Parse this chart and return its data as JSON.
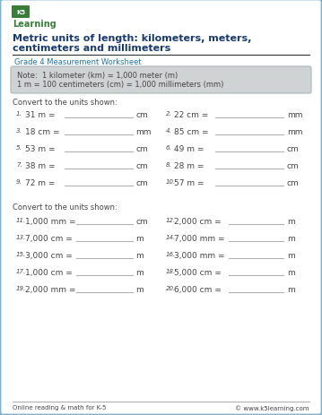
{
  "title_line1": "Metric units of length: kilometers, meters,",
  "title_line2": "centimeters and millimeters",
  "subtitle": "Grade 4 Measurement Worksheet",
  "note_line1": "Note:  1 kilometer (km) = 1,000 meter (m)",
  "note_line2": "1 m = 100 centimeters (cm) = 1,000 millimeters (mm)",
  "convert_label": "Convert to the units shown:",
  "convert_label2": "Convert to the units shown:",
  "footer_left": "Online reading & math for K-5",
  "footer_right": "© www.k5learning.com",
  "title_color": "#1a3a6b",
  "subtitle_color": "#2471a3",
  "note_bg": "#d0d3d4",
  "border_color": "#aab7b8",
  "text_color": "#444444",
  "page_bg": "#ffffff",
  "border_outer": "#7fb3d3",
  "line_color": "#b0b0b0",
  "questions_col1": [
    {
      "num": "1.",
      "text": "31 m =",
      "unit": "cm"
    },
    {
      "num": "3.",
      "text": "18 cm =",
      "unit": "mm"
    },
    {
      "num": "5.",
      "text": "53 m =",
      "unit": "cm"
    },
    {
      "num": "7.",
      "text": "38 m =",
      "unit": "cm"
    },
    {
      "num": "9.",
      "text": "72 m =",
      "unit": "cm"
    }
  ],
  "questions_col2": [
    {
      "num": "2.",
      "text": "22 cm =",
      "unit": "mm"
    },
    {
      "num": "4.",
      "text": "85 cm =",
      "unit": "mm"
    },
    {
      "num": "6.",
      "text": "49 m =",
      "unit": "cm"
    },
    {
      "num": "8.",
      "text": "28 m =",
      "unit": "cm"
    },
    {
      "num": "10.",
      "text": "57 m =",
      "unit": "cm"
    }
  ],
  "questions2_col1": [
    {
      "num": "11.",
      "text": "1,000 mm =",
      "unit": "cm"
    },
    {
      "num": "13.",
      "text": "7,000 cm =",
      "unit": "m"
    },
    {
      "num": "15.",
      "text": "3,000 cm =",
      "unit": "m"
    },
    {
      "num": "17.",
      "text": "1,000 cm =",
      "unit": "m"
    },
    {
      "num": "19.",
      "text": "2,000 mm =",
      "unit": "m"
    }
  ],
  "questions2_col2": [
    {
      "num": "12.",
      "text": "2,000 cm =",
      "unit": "m"
    },
    {
      "num": "14.",
      "text": "7,000 mm =",
      "unit": "m"
    },
    {
      "num": "16.",
      "text": "3,000 mm =",
      "unit": "m"
    },
    {
      "num": "18.",
      "text": "5,000 cm =",
      "unit": "m"
    },
    {
      "num": "20.",
      "text": "6,000 cm =",
      "unit": "m"
    }
  ]
}
